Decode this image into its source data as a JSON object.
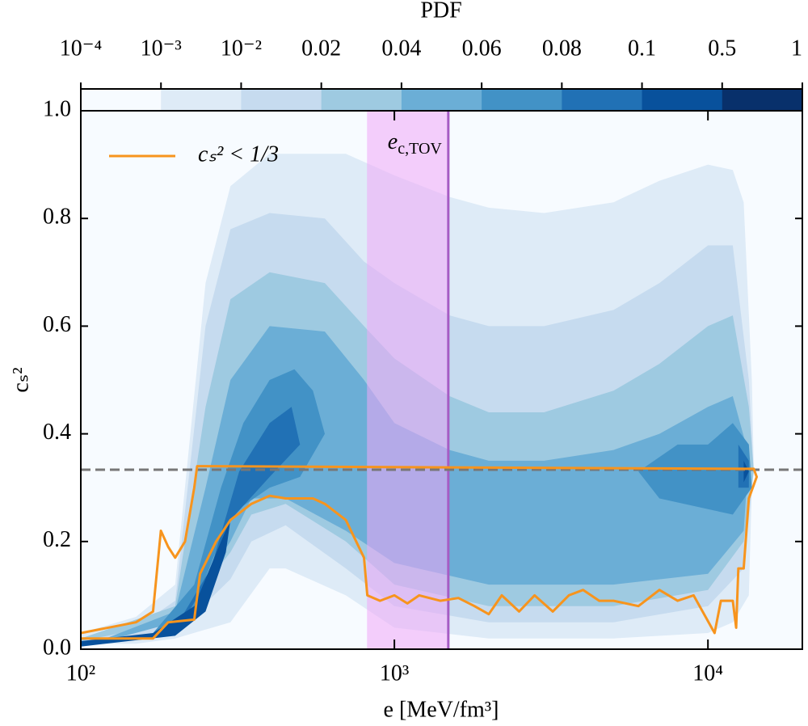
{
  "chart_data": {
    "type": "contourf",
    "xlabel": "e [MeV/fm³]",
    "ylabel": "cₛ²",
    "xlim": [
      100,
      20000
    ],
    "ylim": [
      0,
      1
    ],
    "log_x": true,
    "xticks": [
      {
        "value": 100,
        "label": "10²"
      },
      {
        "value": 1000,
        "label": "10³"
      },
      {
        "value": 10000,
        "label": "10⁴"
      }
    ],
    "yticks": [
      {
        "value": 0,
        "label": "0.0"
      },
      {
        "value": 0.2,
        "label": "0.2"
      },
      {
        "value": 0.4,
        "label": "0.4"
      },
      {
        "value": 0.6,
        "label": "0.6"
      },
      {
        "value": 0.8,
        "label": "0.8"
      },
      {
        "value": 1,
        "label": "1.0"
      }
    ],
    "colorbar": {
      "label": "PDF",
      "levels": [
        {
          "value": 0.0001,
          "label": "10⁻⁴"
        },
        {
          "value": 0.001,
          "label": "10⁻³"
        },
        {
          "value": 0.01,
          "label": "10⁻²"
        },
        0.02,
        0.04,
        0.06,
        0.08,
        0.1,
        0.5,
        1
      ],
      "colors": [
        "#f7fbff",
        "#deebf7",
        "#c6dbef",
        "#9ecae1",
        "#6baed6",
        "#4292c6",
        "#2171b5",
        "#08519c",
        "#08306b"
      ]
    },
    "contours": [
      {
        "color": "#deebf7",
        "x": [
          100,
          150,
          200,
          250,
          300,
          400,
          700,
          1000,
          1500,
          2000,
          3000,
          5000,
          7000,
          10000,
          12000,
          13000,
          13800,
          14000,
          13800,
          13500,
          12000,
          10000,
          5000,
          2000,
          1000,
          700,
          450,
          400,
          300,
          200,
          150,
          100
        ],
        "y": [
          0.03,
          0.06,
          0.12,
          0.68,
          0.86,
          0.92,
          0.92,
          0.88,
          0.84,
          0.82,
          0.81,
          0.83,
          0.87,
          0.9,
          0.89,
          0.83,
          0.5,
          0.34,
          0.3,
          0.1,
          0.05,
          0.03,
          0.02,
          0.02,
          0.04,
          0.1,
          0.15,
          0.15,
          0.05,
          0.02,
          0.01,
          0.01
        ]
      },
      {
        "color": "#c6dbef",
        "x": [
          100,
          150,
          200,
          250,
          300,
          400,
          600,
          800,
          1000,
          1500,
          2000,
          3000,
          5000,
          7000,
          10000,
          12000,
          13500,
          14000,
          13000,
          10000,
          5000,
          2000,
          1000,
          700,
          450,
          350,
          300,
          200,
          100
        ],
        "y": [
          0.02,
          0.04,
          0.09,
          0.6,
          0.78,
          0.81,
          0.8,
          0.72,
          0.68,
          0.62,
          0.6,
          0.6,
          0.63,
          0.68,
          0.75,
          0.75,
          0.5,
          0.33,
          0.15,
          0.08,
          0.05,
          0.05,
          0.08,
          0.15,
          0.23,
          0.2,
          0.13,
          0.03,
          0.015
        ]
      },
      {
        "color": "#9ecae1",
        "x": [
          100,
          200,
          250,
          300,
          400,
          600,
          800,
          1000,
          1500,
          2000,
          3000,
          5000,
          7000,
          10000,
          12000,
          13500,
          14000,
          13000,
          10000,
          5000,
          2000,
          1000,
          700,
          450,
          350,
          300,
          200,
          100
        ],
        "y": [
          0.02,
          0.08,
          0.45,
          0.65,
          0.7,
          0.68,
          0.6,
          0.54,
          0.47,
          0.44,
          0.44,
          0.48,
          0.53,
          0.6,
          0.62,
          0.45,
          0.33,
          0.2,
          0.11,
          0.08,
          0.08,
          0.12,
          0.2,
          0.27,
          0.25,
          0.18,
          0.05,
          0.015
        ]
      },
      {
        "color": "#6baed6",
        "x": [
          120,
          200,
          250,
          300,
          400,
          600,
          800,
          1000,
          1500,
          2000,
          3000,
          5000,
          7000,
          10000,
          12000,
          13500,
          13000,
          10000,
          5000,
          2000,
          1000,
          700,
          450,
          350,
          300,
          200,
          120
        ],
        "y": [
          0.02,
          0.07,
          0.3,
          0.5,
          0.6,
          0.59,
          0.5,
          0.42,
          0.37,
          0.35,
          0.35,
          0.37,
          0.4,
          0.45,
          0.47,
          0.36,
          0.22,
          0.14,
          0.12,
          0.12,
          0.16,
          0.22,
          0.28,
          0.28,
          0.2,
          0.05,
          0.015
        ]
      },
      {
        "color": "#4292c6",
        "x": [
          170,
          230,
          280,
          330,
          400,
          480,
          550,
          600,
          500,
          400,
          300,
          230,
          170
        ],
        "y": [
          0.03,
          0.12,
          0.3,
          0.42,
          0.5,
          0.52,
          0.48,
          0.4,
          0.32,
          0.3,
          0.25,
          0.08,
          0.02
        ]
      },
      {
        "color": "#4292c6",
        "x": [
          6000,
          8000,
          10000,
          12000,
          13500,
          13800,
          12000,
          10000,
          7000
        ],
        "y": [
          0.33,
          0.38,
          0.38,
          0.42,
          0.38,
          0.3,
          0.25,
          0.26,
          0.28
        ]
      },
      {
        "color": "#2171b5",
        "x": [
          200,
          260,
          320,
          400,
          470,
          500,
          400,
          300,
          250,
          200
        ],
        "y": [
          0.04,
          0.15,
          0.33,
          0.42,
          0.45,
          0.38,
          0.32,
          0.24,
          0.12,
          0.03
        ]
      },
      {
        "color": "#2171b5",
        "x": [
          12500,
          13500,
          13500,
          12500
        ],
        "y": [
          0.38,
          0.35,
          0.3,
          0.3
        ]
      },
      {
        "color": "#08519c",
        "x": [
          100,
          170,
          230,
          280,
          300,
          290,
          250,
          200,
          100
        ],
        "y": [
          0.015,
          0.03,
          0.08,
          0.2,
          0.24,
          0.18,
          0.07,
          0.025,
          0.005
        ]
      },
      {
        "color": "#08519c",
        "x": [
          13000,
          13500,
          13000
        ],
        "y": [
          0.35,
          0.33,
          0.31
        ]
      }
    ],
    "band": {
      "x": [
        818,
        1486
      ],
      "color": "#f0a8f8"
    },
    "vline": {
      "x": 1486,
      "color": "#a65cc4"
    },
    "annotation": {
      "text": "e",
      "subscript": "c,TOV",
      "color": "#6a1b7a"
    },
    "hline": {
      "y": 0.3333,
      "color": "#777777"
    },
    "legend": "upper left",
    "series": [
      {
        "name": "cₛ² < 1/3",
        "color": "#f7941d",
        "x": [
          100,
          150,
          170,
          180,
          190,
          200,
          215,
          230,
          235,
          14000,
          14300,
          13500,
          13000,
          12500,
          12300,
          12000,
          11000,
          10500,
          9000,
          8000,
          7000,
          6000,
          5000,
          4500,
          4000,
          3600,
          3200,
          2800,
          2500,
          2200,
          2000,
          1800,
          1600,
          1400,
          1200,
          1100,
          1000,
          900,
          820,
          800,
          700,
          600,
          550,
          450,
          400,
          350,
          300,
          270,
          240,
          230,
          190,
          170,
          100
        ],
        "y": [
          0.03,
          0.05,
          0.07,
          0.22,
          0.19,
          0.17,
          0.2,
          0.3,
          0.34,
          0.335,
          0.32,
          0.28,
          0.15,
          0.15,
          0.04,
          0.09,
          0.09,
          0.03,
          0.1,
          0.09,
          0.11,
          0.08,
          0.09,
          0.09,
          0.11,
          0.1,
          0.07,
          0.1,
          0.07,
          0.1,
          0.065,
          0.08,
          0.095,
          0.09,
          0.1,
          0.085,
          0.1,
          0.09,
          0.1,
          0.17,
          0.24,
          0.27,
          0.28,
          0.28,
          0.285,
          0.27,
          0.24,
          0.2,
          0.14,
          0.055,
          0.05,
          0.02,
          0.02
        ]
      }
    ]
  }
}
